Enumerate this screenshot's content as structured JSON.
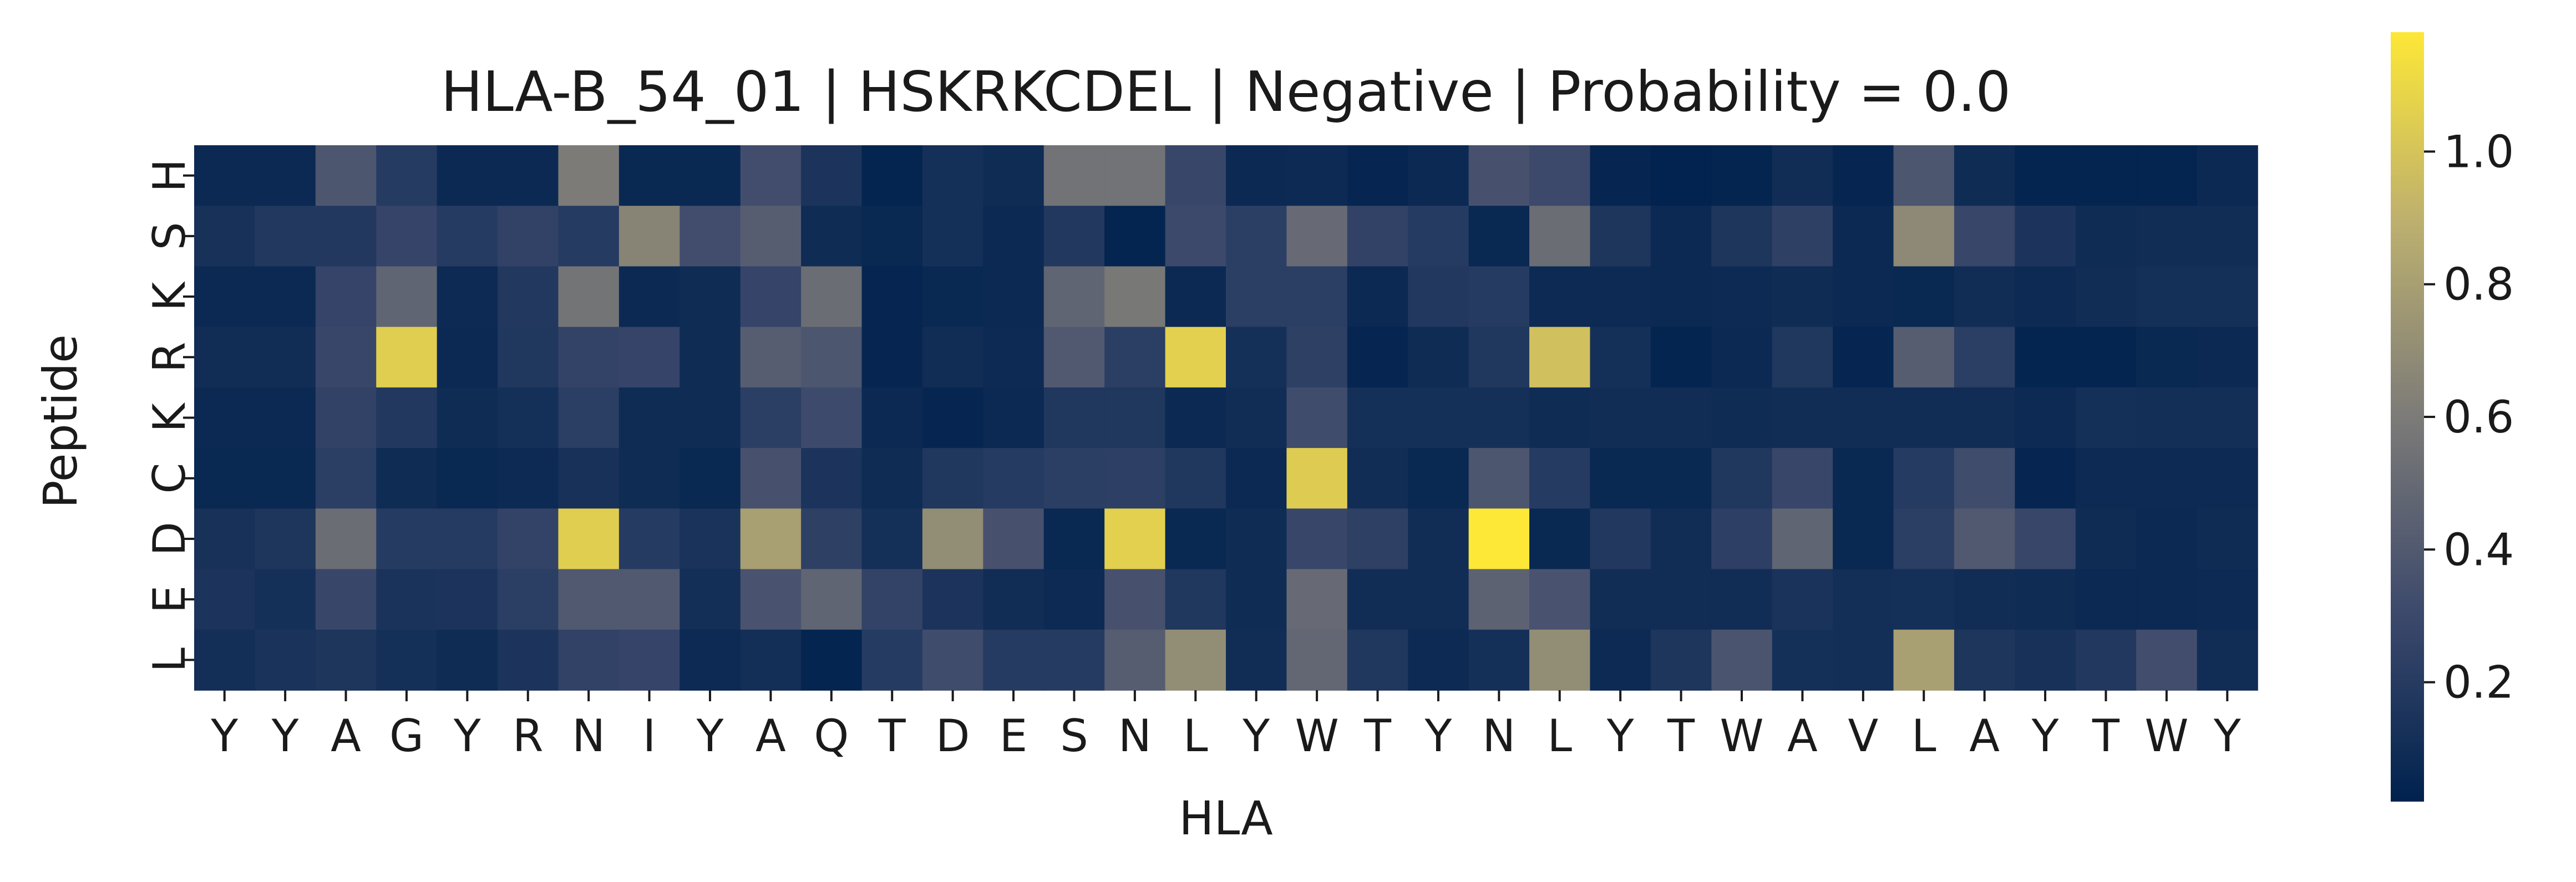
{
  "chart_data": {
    "type": "heatmap",
    "title": "HLA-B_54_01 | HSKRKCDEL | Negative | Probability = 0.0",
    "xlabel": "HLA",
    "ylabel": "Peptide",
    "x_labels": [
      "Y",
      "Y",
      "A",
      "G",
      "Y",
      "R",
      "N",
      "I",
      "Y",
      "A",
      "Q",
      "T",
      "D",
      "E",
      "S",
      "N",
      "L",
      "Y",
      "W",
      "T",
      "Y",
      "N",
      "L",
      "Y",
      "T",
      "W",
      "A",
      "V",
      "L",
      "A",
      "Y",
      "T",
      "W",
      "Y"
    ],
    "y_labels": [
      "H",
      "S",
      "K",
      "R",
      "K",
      "C",
      "D",
      "E",
      "L"
    ],
    "colormap": "cividis",
    "color_range": [
      0.02,
      1.18
    ],
    "colorbar_ticks": [
      "0.2",
      "0.4",
      "0.6",
      "0.8",
      "1.0"
    ],
    "colorbar_tick_values": [
      0.2,
      0.4,
      0.6,
      0.8,
      1.0
    ],
    "values": [
      [
        0.07,
        0.07,
        0.38,
        0.2,
        0.07,
        0.07,
        0.6,
        0.06,
        0.06,
        0.33,
        0.15,
        0.04,
        0.12,
        0.09,
        0.55,
        0.55,
        0.28,
        0.07,
        0.08,
        0.05,
        0.07,
        0.35,
        0.3,
        0.05,
        0.03,
        0.04,
        0.1,
        0.05,
        0.38,
        0.09,
        0.04,
        0.04,
        0.04,
        0.07
      ],
      [
        0.13,
        0.18,
        0.18,
        0.27,
        0.2,
        0.25,
        0.2,
        0.65,
        0.33,
        0.42,
        0.09,
        0.06,
        0.12,
        0.07,
        0.18,
        0.04,
        0.3,
        0.22,
        0.5,
        0.25,
        0.2,
        0.06,
        0.52,
        0.16,
        0.07,
        0.16,
        0.24,
        0.07,
        0.68,
        0.28,
        0.15,
        0.09,
        0.1,
        0.1
      ],
      [
        0.07,
        0.07,
        0.27,
        0.47,
        0.08,
        0.18,
        0.56,
        0.07,
        0.09,
        0.27,
        0.52,
        0.05,
        0.06,
        0.07,
        0.47,
        0.58,
        0.07,
        0.22,
        0.22,
        0.07,
        0.18,
        0.2,
        0.08,
        0.08,
        0.07,
        0.08,
        0.09,
        0.07,
        0.06,
        0.1,
        0.08,
        0.1,
        0.12,
        0.12
      ],
      [
        0.1,
        0.1,
        0.28,
        1.05,
        0.07,
        0.17,
        0.26,
        0.27,
        0.09,
        0.42,
        0.38,
        0.05,
        0.1,
        0.08,
        0.4,
        0.22,
        1.06,
        0.12,
        0.24,
        0.05,
        0.09,
        0.17,
        0.98,
        0.12,
        0.04,
        0.07,
        0.17,
        0.05,
        0.42,
        0.22,
        0.04,
        0.04,
        0.06,
        0.07
      ],
      [
        0.07,
        0.07,
        0.25,
        0.18,
        0.09,
        0.12,
        0.22,
        0.09,
        0.09,
        0.22,
        0.31,
        0.07,
        0.05,
        0.07,
        0.17,
        0.17,
        0.07,
        0.1,
        0.32,
        0.12,
        0.12,
        0.12,
        0.09,
        0.1,
        0.1,
        0.09,
        0.1,
        0.1,
        0.1,
        0.1,
        0.08,
        0.12,
        0.11,
        0.11
      ],
      [
        0.06,
        0.06,
        0.22,
        0.09,
        0.06,
        0.08,
        0.13,
        0.09,
        0.06,
        0.35,
        0.15,
        0.09,
        0.17,
        0.2,
        0.22,
        0.23,
        0.17,
        0.07,
        1.04,
        0.1,
        0.06,
        0.38,
        0.2,
        0.06,
        0.06,
        0.17,
        0.28,
        0.06,
        0.2,
        0.32,
        0.05,
        0.08,
        0.08,
        0.08
      ],
      [
        0.13,
        0.16,
        0.52,
        0.2,
        0.2,
        0.26,
        1.05,
        0.2,
        0.14,
        0.8,
        0.24,
        0.12,
        0.7,
        0.35,
        0.06,
        1.06,
        0.06,
        0.09,
        0.28,
        0.24,
        0.1,
        1.18,
        0.06,
        0.18,
        0.1,
        0.23,
        0.47,
        0.06,
        0.22,
        0.4,
        0.28,
        0.09,
        0.07,
        0.09
      ],
      [
        0.15,
        0.12,
        0.28,
        0.14,
        0.15,
        0.22,
        0.4,
        0.4,
        0.11,
        0.36,
        0.47,
        0.26,
        0.15,
        0.1,
        0.08,
        0.35,
        0.17,
        0.09,
        0.5,
        0.1,
        0.1,
        0.45,
        0.36,
        0.1,
        0.1,
        0.1,
        0.14,
        0.11,
        0.12,
        0.1,
        0.09,
        0.07,
        0.07,
        0.08
      ],
      [
        0.11,
        0.14,
        0.16,
        0.12,
        0.09,
        0.15,
        0.25,
        0.27,
        0.08,
        0.11,
        0.04,
        0.2,
        0.32,
        0.2,
        0.2,
        0.42,
        0.7,
        0.1,
        0.48,
        0.17,
        0.08,
        0.12,
        0.7,
        0.08,
        0.16,
        0.37,
        0.12,
        0.11,
        0.8,
        0.16,
        0.13,
        0.18,
        0.33,
        0.1
      ]
    ]
  }
}
